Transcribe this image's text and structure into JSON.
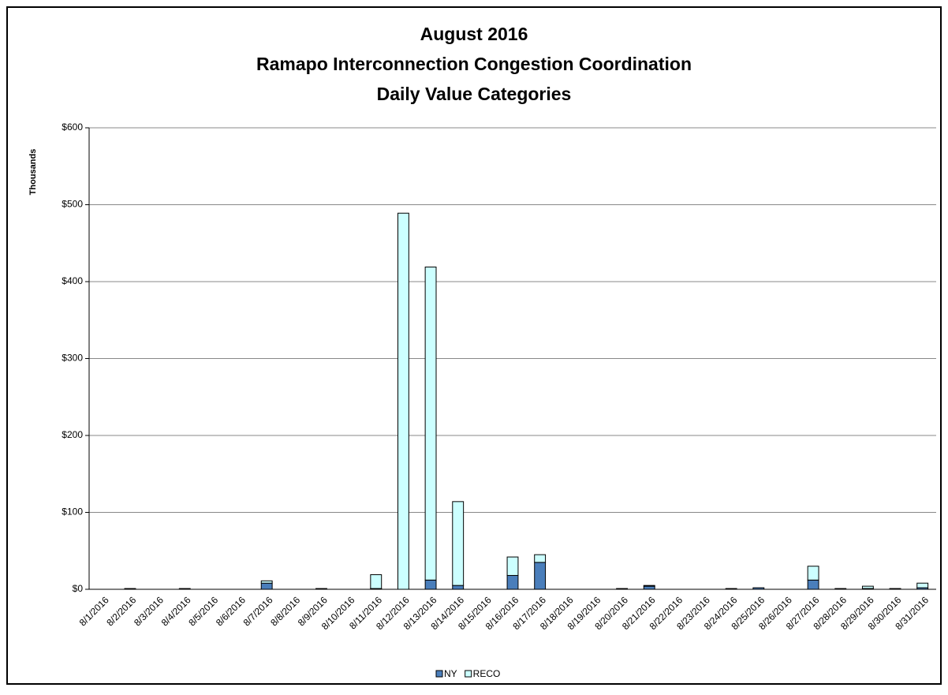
{
  "chart_data": {
    "type": "stacked_bar",
    "title": [
      "August 2016",
      "Ramapo Interconnection Congestion Coordination",
      "Daily Value Categories"
    ],
    "y_label": "Thousands",
    "categories": [
      "8/1/2016",
      "8/2/2016",
      "8/3/2016",
      "8/4/2016",
      "8/5/2016",
      "8/6/2016",
      "8/7/2016",
      "8/8/2016",
      "8/9/2016",
      "8/10/2016",
      "8/11/2016",
      "8/12/2016",
      "8/13/2016",
      "8/14/2016",
      "8/15/2016",
      "8/16/2016",
      "8/17/2016",
      "8/18/2016",
      "8/19/2016",
      "8/20/2016",
      "8/21/2016",
      "8/22/2016",
      "8/23/2016",
      "8/24/2016",
      "8/25/2016",
      "8/26/2016",
      "8/27/2016",
      "8/28/2016",
      "8/29/2016",
      "8/30/2016",
      "8/31/2016"
    ],
    "series": [
      {
        "name": "NY",
        "color": "#4a7ebb",
        "values": [
          0,
          1,
          0,
          1,
          0,
          0,
          8,
          0,
          1,
          0,
          1,
          0,
          12,
          5,
          0,
          18,
          35,
          0,
          0,
          1,
          4,
          0,
          0,
          1,
          2,
          0,
          12,
          1,
          1,
          1,
          2
        ]
      },
      {
        "name": "RECO",
        "color": "#ccffff",
        "values": [
          0,
          0,
          0,
          0,
          0,
          0,
          3,
          0,
          0,
          0,
          18,
          489,
          407,
          109,
          0,
          24,
          10,
          0,
          0,
          0,
          1,
          0,
          0,
          0,
          0,
          0,
          18,
          0,
          3,
          0,
          6
        ]
      }
    ],
    "ylim": [
      0,
      600
    ],
    "yticks": [
      {
        "value": 0,
        "label": "$0"
      },
      {
        "value": 100,
        "label": "$100"
      },
      {
        "value": 200,
        "label": "$200"
      },
      {
        "value": 300,
        "label": "$300"
      },
      {
        "value": 400,
        "label": "$400"
      },
      {
        "value": 500,
        "label": "$500"
      },
      {
        "value": 600,
        "label": "$600"
      }
    ],
    "grid": true,
    "legend": "bottom"
  }
}
